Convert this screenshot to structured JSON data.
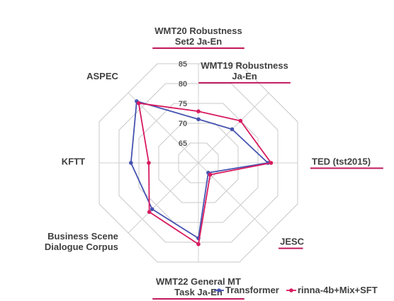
{
  "chart_data": {
    "type": "radar",
    "axes": [
      {
        "label_lines": [
          "WMT20 Robustness",
          "Set2 Ja-En"
        ],
        "underlined": true
      },
      {
        "label_lines": [
          "WMT19 Robustness",
          "Ja-En"
        ],
        "underlined": true
      },
      {
        "label_lines": [
          "TED (tst2015)"
        ],
        "underlined": true
      },
      {
        "label_lines": [
          "JESC"
        ],
        "underlined": true
      },
      {
        "label_lines": [
          "WMT22 General MT",
          "Task Ja-En"
        ],
        "underlined": true
      },
      {
        "label_lines": [
          "Business Scene",
          "Dialogue Corpus"
        ],
        "underlined": false
      },
      {
        "label_lines": [
          "KFTT"
        ],
        "underlined": false
      },
      {
        "label_lines": [
          "ASPEC"
        ],
        "underlined": false
      }
    ],
    "r_ticks": [
      65,
      70,
      75,
      80,
      85
    ],
    "r_tick_labels": [
      "65",
      "70",
      "75",
      "80",
      "85"
    ],
    "r_range": [
      60,
      85
    ],
    "grid": true,
    "series": [
      {
        "name": "Transformer",
        "color": "#4553b0",
        "values": [
          71.0,
          72.0,
          77.5,
          63.5,
          79.0,
          76.5,
          77.0,
          82.0
        ]
      },
      {
        "name": "rinna-4b+Mix+SFT",
        "color": "#d81b60",
        "values": [
          73.0,
          75.0,
          78.3,
          64.2,
          80.5,
          77.5,
          72.5,
          81.3
        ]
      }
    ],
    "legend_position": "bottom-right",
    "underline_color": "#c2185b"
  }
}
